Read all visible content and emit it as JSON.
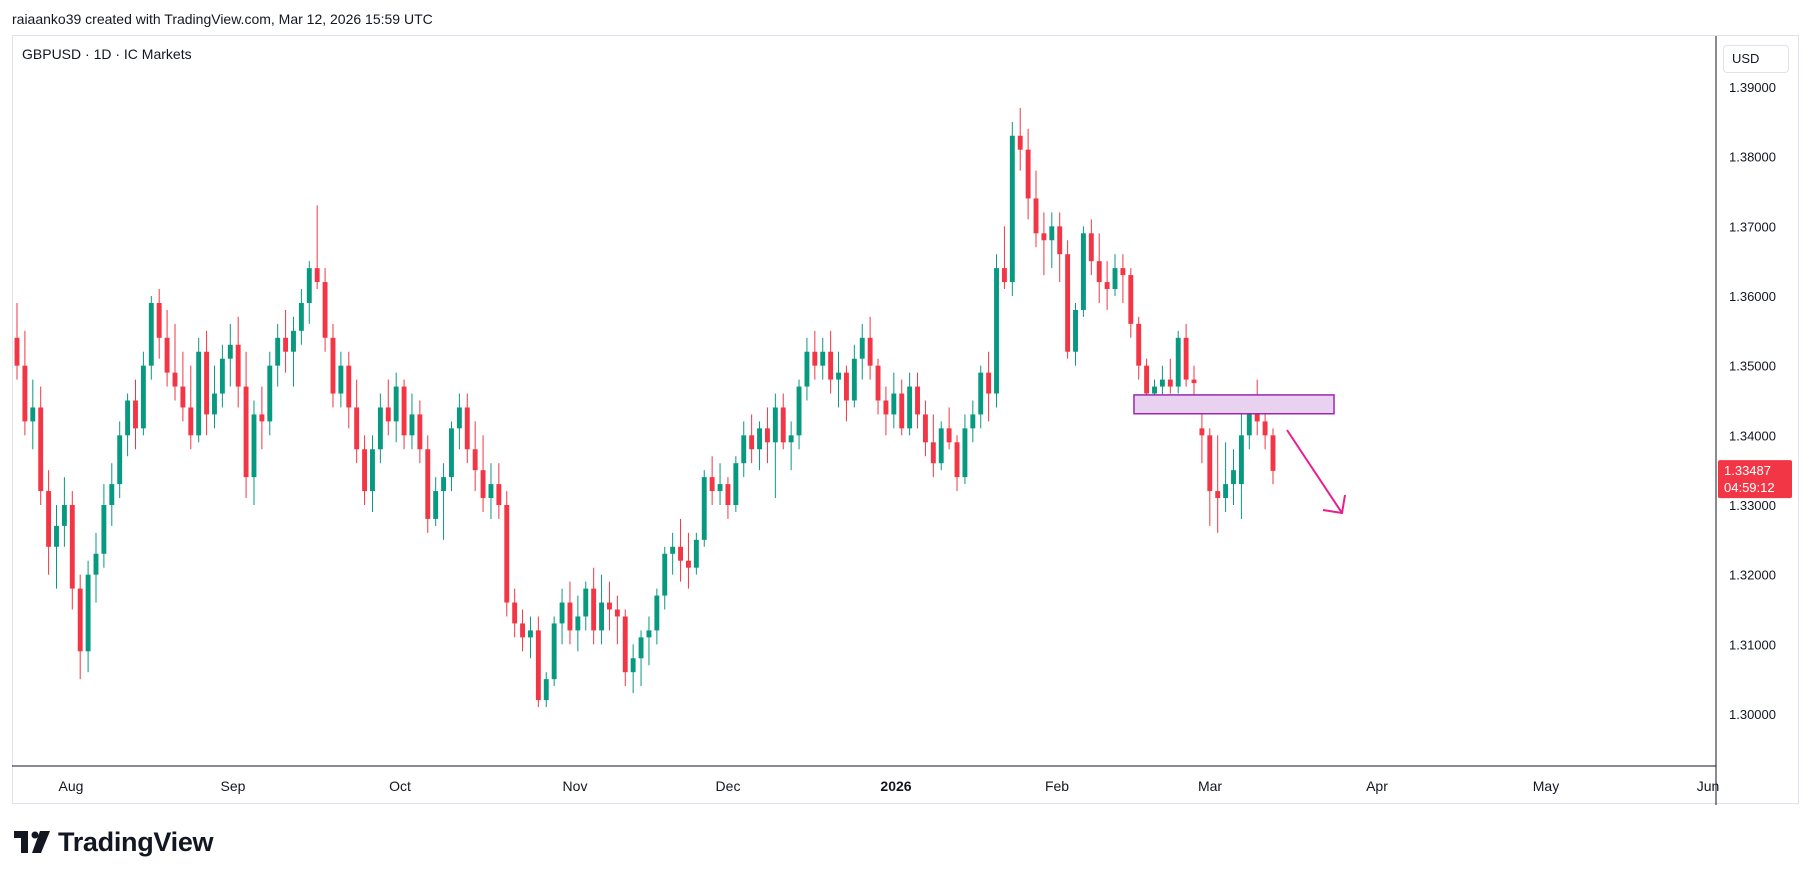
{
  "header": {
    "attribution": "raiaanko39 created with TradingView.com, Mar 12, 2026 15:59 UTC"
  },
  "chart": {
    "symbol_legend": "GBPUSD · 1D · IC Markets",
    "currency_label": "USD",
    "price_labels": [
      "1.39000",
      "1.38000",
      "1.37000",
      "1.36000",
      "1.35000",
      "1.34000",
      "1.33000",
      "1.32000",
      "1.31000",
      "1.30000"
    ],
    "month_labels": [
      "Aug",
      "Sep",
      "Oct",
      "Nov",
      "Dec",
      "2026",
      "Feb",
      "Mar",
      "Apr",
      "May",
      "Jun"
    ],
    "last_price": "1.33487",
    "countdown": "04:59:12"
  },
  "brand": {
    "name": "TradingView"
  },
  "colors": {
    "up": "#089981",
    "down": "#f23645",
    "zone_fill": "#e9d2ef",
    "zone_border": "#9c27b0",
    "arrow": "#e91e8c",
    "badge": "#f23645"
  },
  "chart_data": {
    "type": "candlestick",
    "symbol": "GBPUSD",
    "timeframe": "1D",
    "ylim": [
      1.292,
      1.397
    ],
    "y_ticks": [
      1.39,
      1.38,
      1.37,
      1.36,
      1.35,
      1.34,
      1.33,
      1.32,
      1.31,
      1.3
    ],
    "x_ticks": [
      "Aug",
      "Sep",
      "Oct",
      "Nov",
      "Dec",
      "2026",
      "Feb",
      "Mar",
      "Apr",
      "May",
      "Jun"
    ],
    "last_price": 1.33487,
    "ohlc": [
      [
        1.354,
        1.359,
        1.348,
        1.35
      ],
      [
        1.35,
        1.355,
        1.34,
        1.342
      ],
      [
        1.342,
        1.348,
        1.338,
        1.344
      ],
      [
        1.344,
        1.347,
        1.33,
        1.332
      ],
      [
        1.332,
        1.335,
        1.32,
        1.324
      ],
      [
        1.324,
        1.33,
        1.318,
        1.327
      ],
      [
        1.327,
        1.334,
        1.324,
        1.33
      ],
      [
        1.33,
        1.332,
        1.315,
        1.318
      ],
      [
        1.318,
        1.32,
        1.305,
        1.309
      ],
      [
        1.309,
        1.322,
        1.306,
        1.32
      ],
      [
        1.32,
        1.326,
        1.316,
        1.323
      ],
      [
        1.323,
        1.333,
        1.321,
        1.33
      ],
      [
        1.33,
        1.336,
        1.327,
        1.333
      ],
      [
        1.333,
        1.342,
        1.331,
        1.34
      ],
      [
        1.34,
        1.346,
        1.337,
        1.345
      ],
      [
        1.345,
        1.348,
        1.338,
        1.341
      ],
      [
        1.341,
        1.352,
        1.34,
        1.35
      ],
      [
        1.35,
        1.36,
        1.348,
        1.359
      ],
      [
        1.359,
        1.361,
        1.351,
        1.354
      ],
      [
        1.354,
        1.358,
        1.347,
        1.349
      ],
      [
        1.349,
        1.356,
        1.345,
        1.347
      ],
      [
        1.347,
        1.352,
        1.342,
        1.344
      ],
      [
        1.344,
        1.35,
        1.338,
        1.34
      ],
      [
        1.34,
        1.354,
        1.339,
        1.352
      ],
      [
        1.352,
        1.355,
        1.34,
        1.343
      ],
      [
        1.343,
        1.35,
        1.341,
        1.346
      ],
      [
        1.346,
        1.353,
        1.344,
        1.351
      ],
      [
        1.351,
        1.356,
        1.347,
        1.353
      ],
      [
        1.353,
        1.357,
        1.344,
        1.347
      ],
      [
        1.347,
        1.352,
        1.331,
        1.334
      ],
      [
        1.334,
        1.345,
        1.33,
        1.343
      ],
      [
        1.343,
        1.347,
        1.338,
        1.342
      ],
      [
        1.342,
        1.352,
        1.34,
        1.35
      ],
      [
        1.35,
        1.356,
        1.347,
        1.354
      ],
      [
        1.354,
        1.358,
        1.349,
        1.352
      ],
      [
        1.352,
        1.357,
        1.347,
        1.355
      ],
      [
        1.355,
        1.361,
        1.353,
        1.359
      ],
      [
        1.359,
        1.365,
        1.356,
        1.364
      ],
      [
        1.364,
        1.373,
        1.361,
        1.362
      ],
      [
        1.362,
        1.364,
        1.352,
        1.354
      ],
      [
        1.354,
        1.356,
        1.344,
        1.346
      ],
      [
        1.346,
        1.352,
        1.344,
        1.35
      ],
      [
        1.35,
        1.352,
        1.341,
        1.344
      ],
      [
        1.344,
        1.348,
        1.336,
        1.338
      ],
      [
        1.338,
        1.34,
        1.33,
        1.332
      ],
      [
        1.332,
        1.34,
        1.329,
        1.338
      ],
      [
        1.338,
        1.346,
        1.336,
        1.344
      ],
      [
        1.344,
        1.348,
        1.34,
        1.342
      ],
      [
        1.342,
        1.349,
        1.339,
        1.347
      ],
      [
        1.347,
        1.348,
        1.338,
        1.34
      ],
      [
        1.34,
        1.346,
        1.338,
        1.343
      ],
      [
        1.343,
        1.345,
        1.336,
        1.338
      ],
      [
        1.338,
        1.34,
        1.326,
        1.328
      ],
      [
        1.328,
        1.334,
        1.327,
        1.332
      ],
      [
        1.332,
        1.336,
        1.325,
        1.334
      ],
      [
        1.334,
        1.342,
        1.332,
        1.341
      ],
      [
        1.341,
        1.346,
        1.338,
        1.344
      ],
      [
        1.344,
        1.346,
        1.336,
        1.338
      ],
      [
        1.338,
        1.342,
        1.332,
        1.335
      ],
      [
        1.335,
        1.34,
        1.329,
        1.331
      ],
      [
        1.331,
        1.336,
        1.328,
        1.333
      ],
      [
        1.333,
        1.336,
        1.328,
        1.33
      ],
      [
        1.33,
        1.332,
        1.314,
        1.316
      ],
      [
        1.316,
        1.318,
        1.311,
        1.313
      ],
      [
        1.313,
        1.315,
        1.309,
        1.311
      ],
      [
        1.311,
        1.314,
        1.308,
        1.312
      ],
      [
        1.312,
        1.314,
        1.301,
        1.302
      ],
      [
        1.302,
        1.306,
        1.301,
        1.305
      ],
      [
        1.305,
        1.314,
        1.304,
        1.313
      ],
      [
        1.313,
        1.318,
        1.31,
        1.316
      ],
      [
        1.316,
        1.319,
        1.31,
        1.312
      ],
      [
        1.312,
        1.317,
        1.309,
        1.314
      ],
      [
        1.314,
        1.319,
        1.312,
        1.318
      ],
      [
        1.318,
        1.321,
        1.31,
        1.312
      ],
      [
        1.312,
        1.32,
        1.31,
        1.316
      ],
      [
        1.316,
        1.319,
        1.312,
        1.315
      ],
      [
        1.315,
        1.317,
        1.31,
        1.314
      ],
      [
        1.314,
        1.315,
        1.304,
        1.306
      ],
      [
        1.306,
        1.31,
        1.303,
        1.308
      ],
      [
        1.308,
        1.312,
        1.304,
        1.311
      ],
      [
        1.311,
        1.314,
        1.307,
        1.312
      ],
      [
        1.312,
        1.318,
        1.31,
        1.317
      ],
      [
        1.317,
        1.324,
        1.315,
        1.323
      ],
      [
        1.323,
        1.326,
        1.32,
        1.324
      ],
      [
        1.324,
        1.328,
        1.319,
        1.322
      ],
      [
        1.322,
        1.326,
        1.318,
        1.321
      ],
      [
        1.321,
        1.326,
        1.32,
        1.325
      ],
      [
        1.325,
        1.335,
        1.324,
        1.334
      ],
      [
        1.334,
        1.337,
        1.33,
        1.332
      ],
      [
        1.332,
        1.336,
        1.33,
        1.333
      ],
      [
        1.333,
        1.334,
        1.328,
        1.33
      ],
      [
        1.33,
        1.337,
        1.329,
        1.336
      ],
      [
        1.336,
        1.342,
        1.334,
        1.34
      ],
      [
        1.34,
        1.343,
        1.336,
        1.338
      ],
      [
        1.338,
        1.342,
        1.335,
        1.341
      ],
      [
        1.341,
        1.344,
        1.336,
        1.339
      ],
      [
        1.339,
        1.346,
        1.331,
        1.344
      ],
      [
        1.344,
        1.346,
        1.338,
        1.339
      ],
      [
        1.339,
        1.342,
        1.335,
        1.34
      ],
      [
        1.34,
        1.348,
        1.338,
        1.347
      ],
      [
        1.347,
        1.354,
        1.345,
        1.352
      ],
      [
        1.352,
        1.355,
        1.348,
        1.35
      ],
      [
        1.35,
        1.354,
        1.348,
        1.352
      ],
      [
        1.352,
        1.355,
        1.346,
        1.348
      ],
      [
        1.348,
        1.352,
        1.344,
        1.349
      ],
      [
        1.349,
        1.35,
        1.342,
        1.345
      ],
      [
        1.345,
        1.353,
        1.344,
        1.351
      ],
      [
        1.351,
        1.356,
        1.348,
        1.354
      ],
      [
        1.354,
        1.357,
        1.348,
        1.35
      ],
      [
        1.35,
        1.351,
        1.343,
        1.345
      ],
      [
        1.345,
        1.347,
        1.34,
        1.343
      ],
      [
        1.343,
        1.349,
        1.341,
        1.346
      ],
      [
        1.346,
        1.348,
        1.34,
        1.341
      ],
      [
        1.341,
        1.349,
        1.34,
        1.347
      ],
      [
        1.347,
        1.349,
        1.341,
        1.343
      ],
      [
        1.343,
        1.345,
        1.337,
        1.339
      ],
      [
        1.339,
        1.343,
        1.334,
        1.336
      ],
      [
        1.336,
        1.342,
        1.335,
        1.341
      ],
      [
        1.341,
        1.344,
        1.338,
        1.339
      ],
      [
        1.339,
        1.34,
        1.332,
        1.334
      ],
      [
        1.334,
        1.343,
        1.333,
        1.341
      ],
      [
        1.341,
        1.345,
        1.339,
        1.343
      ],
      [
        1.343,
        1.35,
        1.341,
        1.349
      ],
      [
        1.349,
        1.352,
        1.342,
        1.346
      ],
      [
        1.346,
        1.366,
        1.344,
        1.364
      ],
      [
        1.364,
        1.37,
        1.361,
        1.362
      ],
      [
        1.362,
        1.385,
        1.36,
        1.383
      ],
      [
        1.383,
        1.387,
        1.378,
        1.381
      ],
      [
        1.381,
        1.384,
        1.371,
        1.374
      ],
      [
        1.374,
        1.378,
        1.367,
        1.369
      ],
      [
        1.369,
        1.372,
        1.363,
        1.368
      ],
      [
        1.368,
        1.372,
        1.364,
        1.37
      ],
      [
        1.37,
        1.372,
        1.362,
        1.366
      ],
      [
        1.366,
        1.368,
        1.351,
        1.352
      ],
      [
        1.352,
        1.359,
        1.35,
        1.358
      ],
      [
        1.358,
        1.37,
        1.357,
        1.369
      ],
      [
        1.369,
        1.371,
        1.363,
        1.365
      ],
      [
        1.365,
        1.369,
        1.359,
        1.362
      ],
      [
        1.362,
        1.365,
        1.358,
        1.361
      ],
      [
        1.361,
        1.366,
        1.36,
        1.364
      ],
      [
        1.364,
        1.366,
        1.359,
        1.363
      ],
      [
        1.363,
        1.364,
        1.354,
        1.356
      ],
      [
        1.356,
        1.357,
        1.348,
        1.35
      ],
      [
        1.35,
        1.351,
        1.344,
        1.346
      ],
      [
        1.346,
        1.348,
        1.343,
        1.347
      ],
      [
        1.347,
        1.35,
        1.345,
        1.348
      ],
      [
        1.348,
        1.351,
        1.346,
        1.347
      ],
      [
        1.347,
        1.355,
        1.346,
        1.354
      ],
      [
        1.354,
        1.356,
        1.347,
        1.348
      ],
      [
        1.348,
        1.35,
        1.344,
        1.3475
      ],
      [
        1.341,
        1.344,
        1.336,
        1.34
      ],
      [
        1.34,
        1.341,
        1.327,
        1.332
      ],
      [
        1.332,
        1.34,
        1.326,
        1.331
      ],
      [
        1.331,
        1.339,
        1.329,
        1.333
      ],
      [
        1.333,
        1.338,
        1.33,
        1.335
      ],
      [
        1.333,
        1.344,
        1.328,
        1.34
      ],
      [
        1.34,
        1.345,
        1.338,
        1.344
      ],
      [
        1.344,
        1.348,
        1.34,
        1.342
      ],
      [
        1.342,
        1.343,
        1.338,
        1.34
      ],
      [
        1.34,
        1.341,
        1.333,
        1.3349
      ]
    ]
  }
}
